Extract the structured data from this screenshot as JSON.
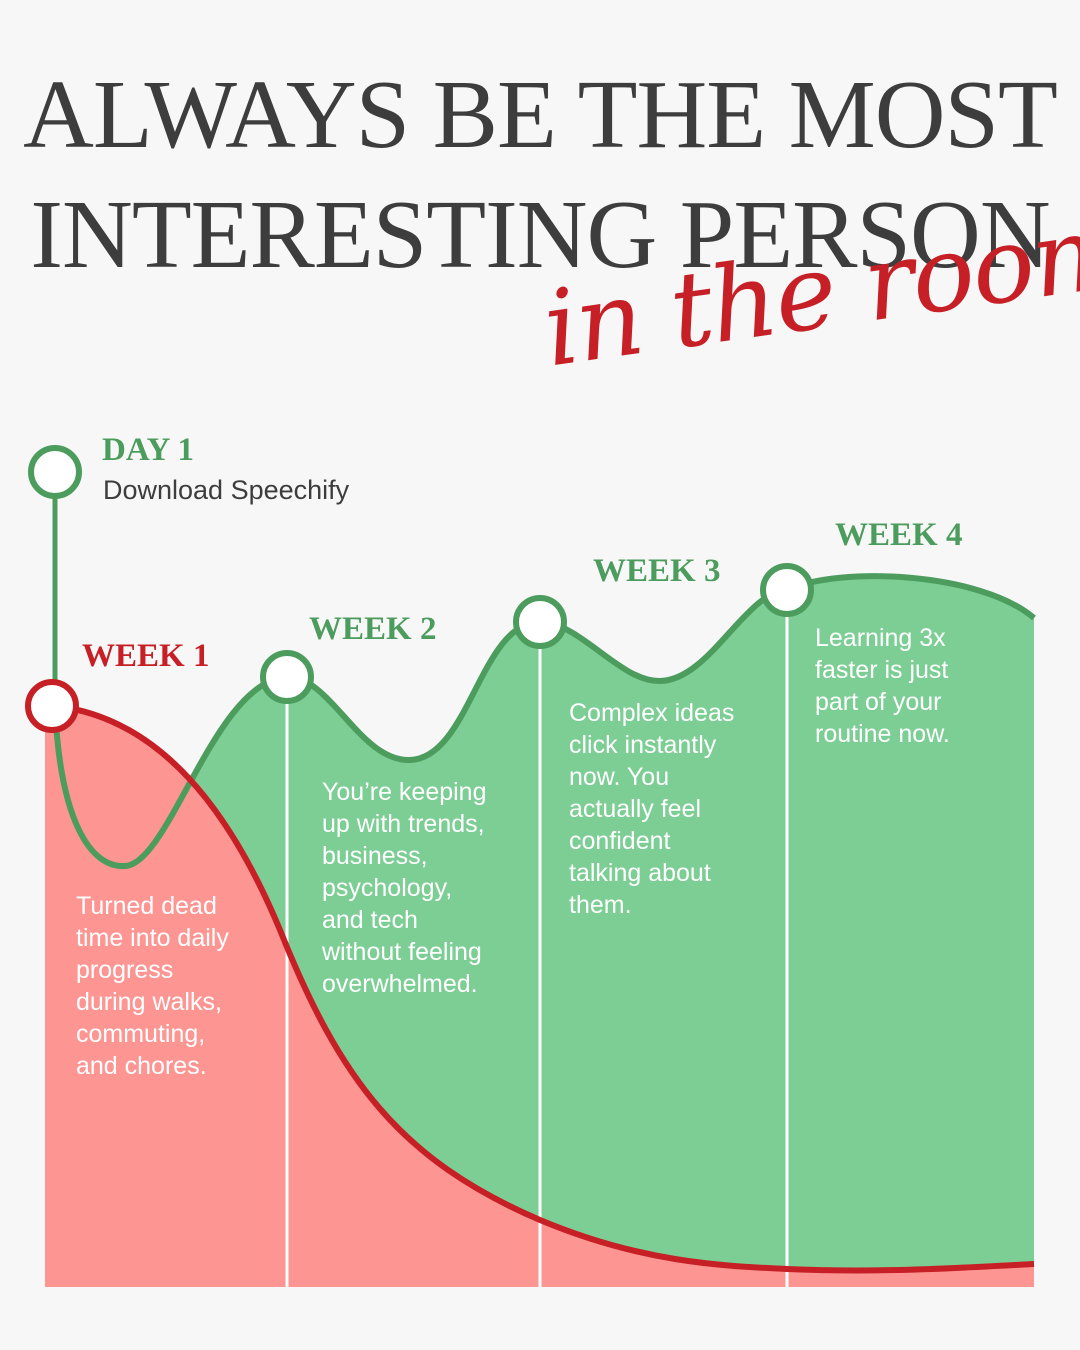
{
  "title": {
    "line1": "ALWAYS BE THE MOST",
    "line2": "INTERESTING PERSON",
    "script": "in the room"
  },
  "milestones": {
    "day1": {
      "label": "DAY 1",
      "subtitle": "Download Speechify"
    },
    "week1": {
      "label": "WEEK 1",
      "text": "Turned dead\ntime into daily\nprogress\nduring walks,\ncommuting,\nand chores."
    },
    "week2": {
      "label": "WEEK 2",
      "text": "You’re keeping\nup with trends,\nbusiness,\npsychology,\nand tech\nwithout feeling\noverwhelmed."
    },
    "week3": {
      "label": "WEEK 3",
      "text": "Complex ideas\nclick instantly\nnow. You\nactually feel\nconfident\ntalking about\nthem."
    },
    "week4": {
      "label": "WEEK 4",
      "text": "Learning 3x\nfaster is just\npart of your\nroutine now."
    }
  },
  "colors": {
    "green_line": "#4c9c5e",
    "green_fill": "#7dce94",
    "red_line": "#c62026",
    "red_fill": "#fd9693",
    "title": "#3d3d3d"
  }
}
